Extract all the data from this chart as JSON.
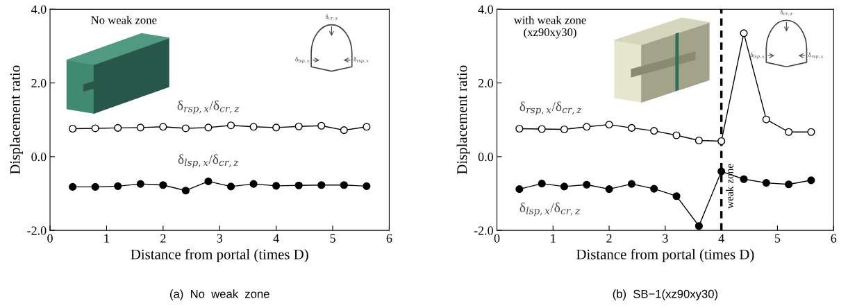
{
  "chart_data": [
    {
      "type": "line",
      "title": "No weak zone",
      "xlabel": "Distance from portal (times D)",
      "ylabel": "Displacement ratio",
      "marker": "circle",
      "x": [
        0.4,
        0.8,
        1.2,
        1.6,
        2.0,
        2.4,
        2.8,
        3.2,
        3.6,
        4.0,
        4.4,
        4.8,
        5.2,
        5.6
      ],
      "series": [
        {
          "name": "δ$_{rsp,x}$/δ$_{cr,z}$",
          "color": "#000000",
          "values": [
            0.76,
            0.77,
            0.78,
            0.79,
            0.81,
            0.77,
            0.79,
            0.85,
            0.81,
            0.79,
            0.82,
            0.84,
            0.72,
            0.81
          ]
        },
        {
          "name": "δ$_{lsp,x}$/δ$_{cr,z}$",
          "color": "#000000",
          "values": [
            -0.82,
            -0.82,
            -0.8,
            -0.74,
            -0.77,
            -0.92,
            -0.67,
            -0.81,
            -0.74,
            -0.79,
            -0.78,
            -0.77,
            -0.77,
            -0.8
          ]
        }
      ],
      "xlim": [
        0,
        6
      ],
      "xticks": [
        0,
        1,
        2,
        3,
        4,
        5,
        6
      ],
      "ylim": [
        -2,
        4
      ],
      "yticks": [
        {
          "value": -2,
          "label": "-2.0"
        },
        {
          "value": 0,
          "label": "0.0"
        },
        {
          "value": 2,
          "label": "2.0"
        },
        {
          "value": 4,
          "label": "4.0"
        }
      ],
      "grid": false,
      "legend": false,
      "annotations": [
        "(a)  No  weak  zone",
        "δ$_{cr,z}$",
        "δ$_{lsp,x}$",
        "δ$_{rsp,x}$"
      ]
    },
    {
      "type": "line",
      "title": "with weak zone\n(xz90xy30)",
      "xlabel": "Distance from portal (times D)",
      "ylabel": "Displacement ratio",
      "marker": "circle",
      "x": [
        0.4,
        0.8,
        1.2,
        1.6,
        2.0,
        2.4,
        2.8,
        3.2,
        3.6,
        4.0,
        4.4,
        4.8,
        5.2,
        5.6
      ],
      "series": [
        {
          "name": "δ$_{rsp,x}$/δ$_{cr,z}$",
          "color": "#000000",
          "values": [
            0.76,
            0.75,
            0.74,
            0.81,
            0.87,
            0.78,
            0.7,
            0.58,
            0.44,
            0.42,
            3.35,
            1.01,
            0.67,
            0.67
          ]
        },
        {
          "name": "δ$_{lsp,x}$/δ$_{cr,z}$",
          "color": "#000000",
          "values": [
            -0.88,
            -0.73,
            -0.81,
            -0.76,
            -0.88,
            -0.74,
            -0.87,
            -1.07,
            -1.88,
            -0.4,
            -0.61,
            -0.71,
            -0.75,
            -0.64
          ]
        }
      ],
      "xlim": [
        0,
        6
      ],
      "xticks": [
        0,
        1,
        2,
        3,
        4,
        5,
        6
      ],
      "ylim": [
        -2,
        4
      ],
      "yticks": [
        {
          "value": -2,
          "label": "-2.0"
        },
        {
          "value": 0,
          "label": "0.0"
        },
        {
          "value": 2,
          "label": "2.0"
        },
        {
          "value": 4,
          "label": "4.0"
        }
      ],
      "grid": false,
      "legend": false,
      "ref_lines": [
        {
          "axis": "x",
          "value": 4,
          "label": "weak zone",
          "color": "#000000",
          "line_style": "dashed"
        }
      ],
      "annotations": [
        "(b)  SB−1(xz90xy30)",
        "δ$_{cr,z}$",
        "δ$_{lsp,x}$",
        "δ$_{rsp,x}$"
      ]
    }
  ]
}
